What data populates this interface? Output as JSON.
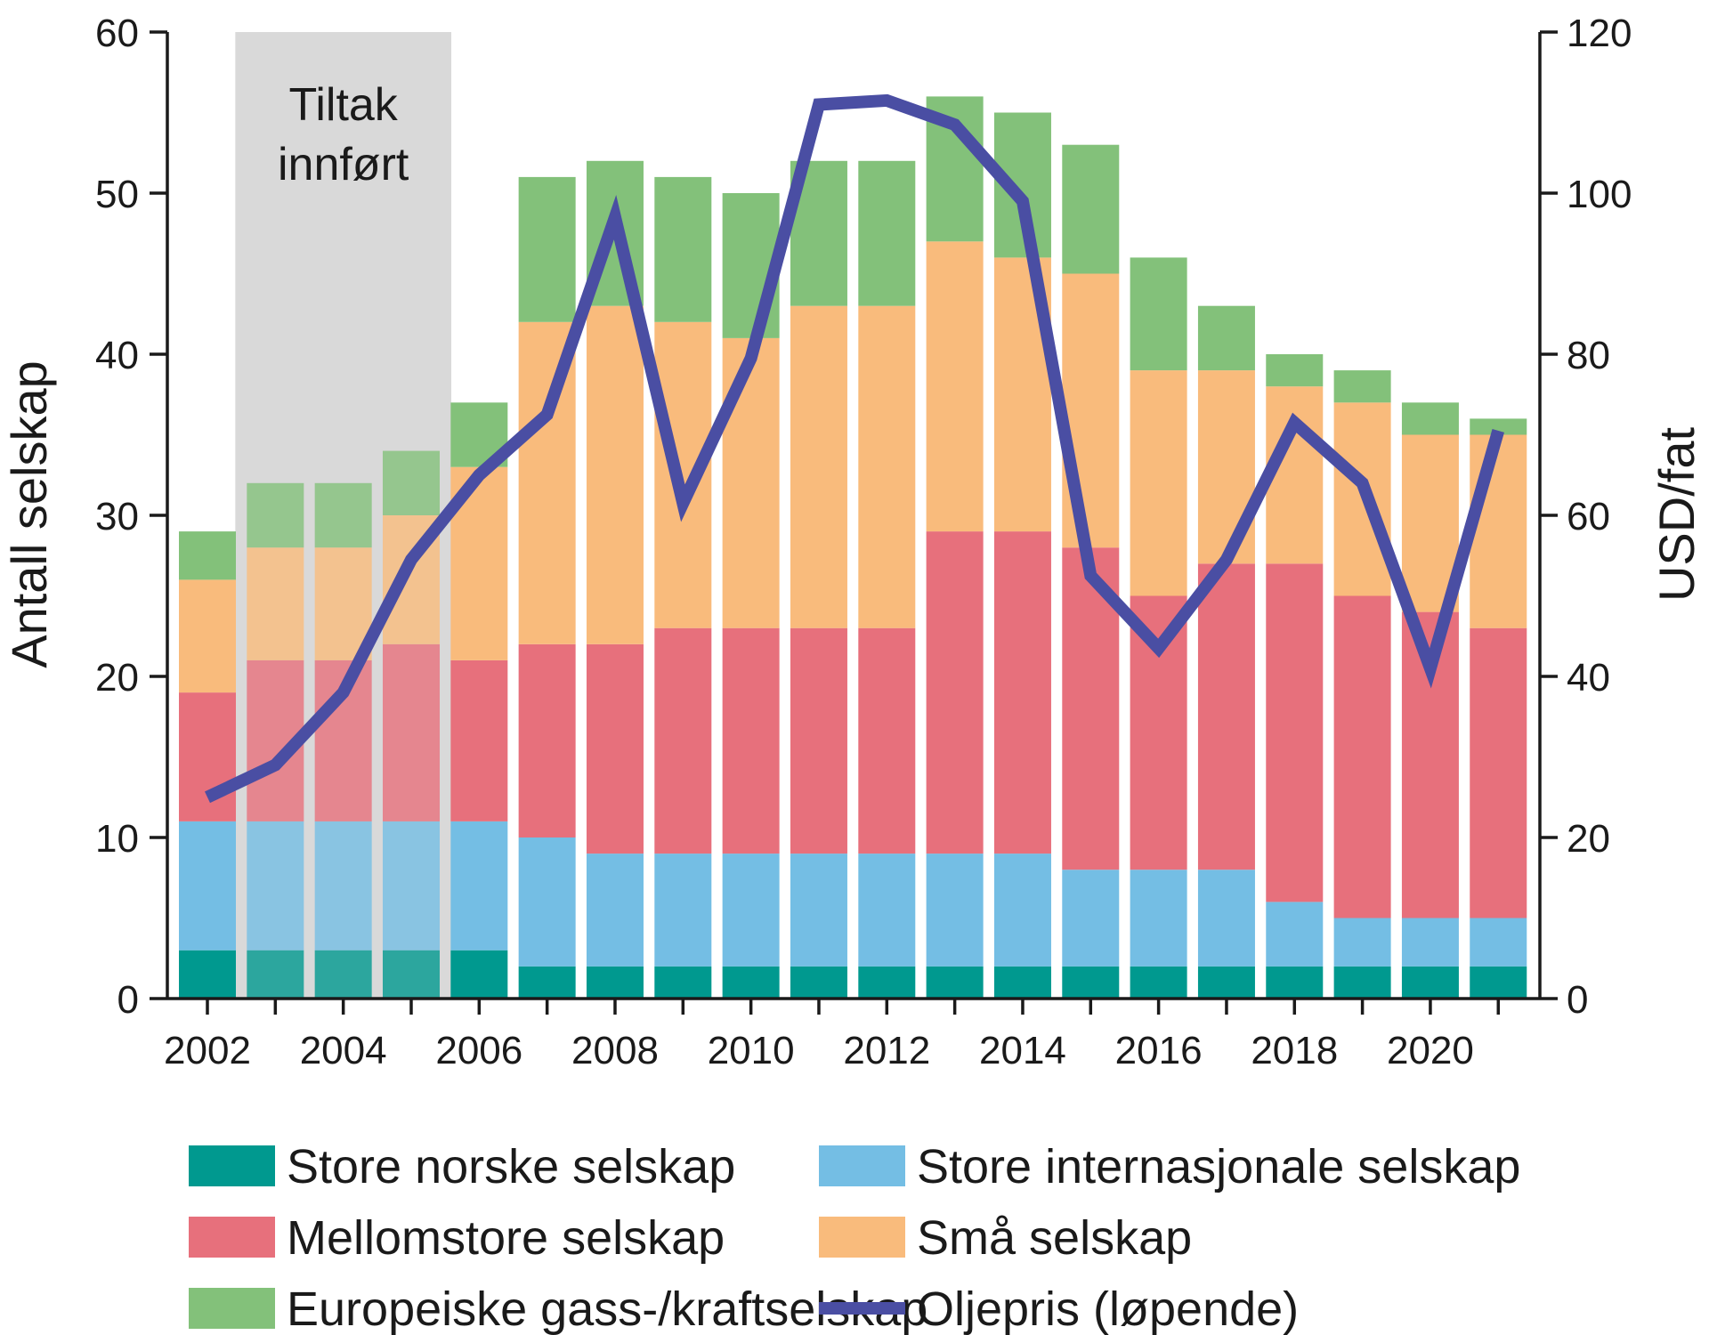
{
  "chart_data": {
    "type": "bar",
    "stacked": true,
    "title": "",
    "xlabel": "",
    "ylabel": "Antall selskap",
    "ylabel_right": "USD/fat",
    "ylim": [
      0,
      60
    ],
    "ylim_right": [
      0,
      120
    ],
    "yticks": [
      "0",
      "10",
      "20",
      "30",
      "40",
      "50",
      "60"
    ],
    "yticks_right": [
      "0",
      "20",
      "40",
      "60",
      "80",
      "100",
      "120"
    ],
    "categories": [
      2002,
      2003,
      2004,
      2005,
      2006,
      2007,
      2008,
      2009,
      2010,
      2011,
      2012,
      2013,
      2014,
      2015,
      2016,
      2017,
      2018,
      2019,
      2020,
      2021
    ],
    "xtick_labels": [
      "2002",
      "2004",
      "2006",
      "2008",
      "2010",
      "2012",
      "2014",
      "2016",
      "2018",
      "2020"
    ],
    "series": [
      {
        "name": "Store norske selskap",
        "color": "#00998f",
        "values": [
          3,
          3,
          3,
          3,
          3,
          2,
          2,
          2,
          2,
          2,
          2,
          2,
          2,
          2,
          2,
          2,
          2,
          2,
          2,
          2
        ]
      },
      {
        "name": "Store internasjonale selskap",
        "color": "#74bee4",
        "values": [
          8,
          8,
          8,
          8,
          8,
          8,
          7,
          7,
          7,
          7,
          7,
          7,
          7,
          6,
          6,
          6,
          4,
          3,
          3,
          3
        ]
      },
      {
        "name": "Mellomstore selskap",
        "color": "#e7707c",
        "values": [
          8,
          10,
          10,
          11,
          10,
          12,
          13,
          14,
          14,
          14,
          14,
          20,
          20,
          20,
          17,
          19,
          21,
          20,
          19,
          18
        ]
      },
      {
        "name": "Små selskap",
        "color": "#f9bb7c",
        "values": [
          7,
          7,
          7,
          8,
          12,
          20,
          21,
          19,
          18,
          20,
          20,
          18,
          17,
          17,
          14,
          12,
          11,
          12,
          11,
          12
        ]
      },
      {
        "name": "Europeiske gass-/kraftselskap",
        "color": "#83c17a",
        "values": [
          3,
          4,
          4,
          4,
          4,
          9,
          9,
          9,
          9,
          9,
          9,
          9,
          9,
          8,
          7,
          4,
          2,
          2,
          2,
          1
        ]
      }
    ],
    "line": {
      "name": "Oljepris (løpende)",
      "color": "#4a4ea3",
      "axis": "right",
      "values": [
        25,
        29,
        38,
        54.5,
        65,
        72.5,
        97,
        61.5,
        79.5,
        111,
        111.5,
        108.5,
        99,
        52.5,
        43.5,
        54.5,
        71.5,
        64,
        41,
        70.5
      ]
    },
    "annotation": {
      "lines": [
        "Tiltak",
        "innført"
      ],
      "from_year": 2003,
      "to_year": 2005,
      "color": "#d9d9d9"
    },
    "legend_position": "bottom"
  }
}
